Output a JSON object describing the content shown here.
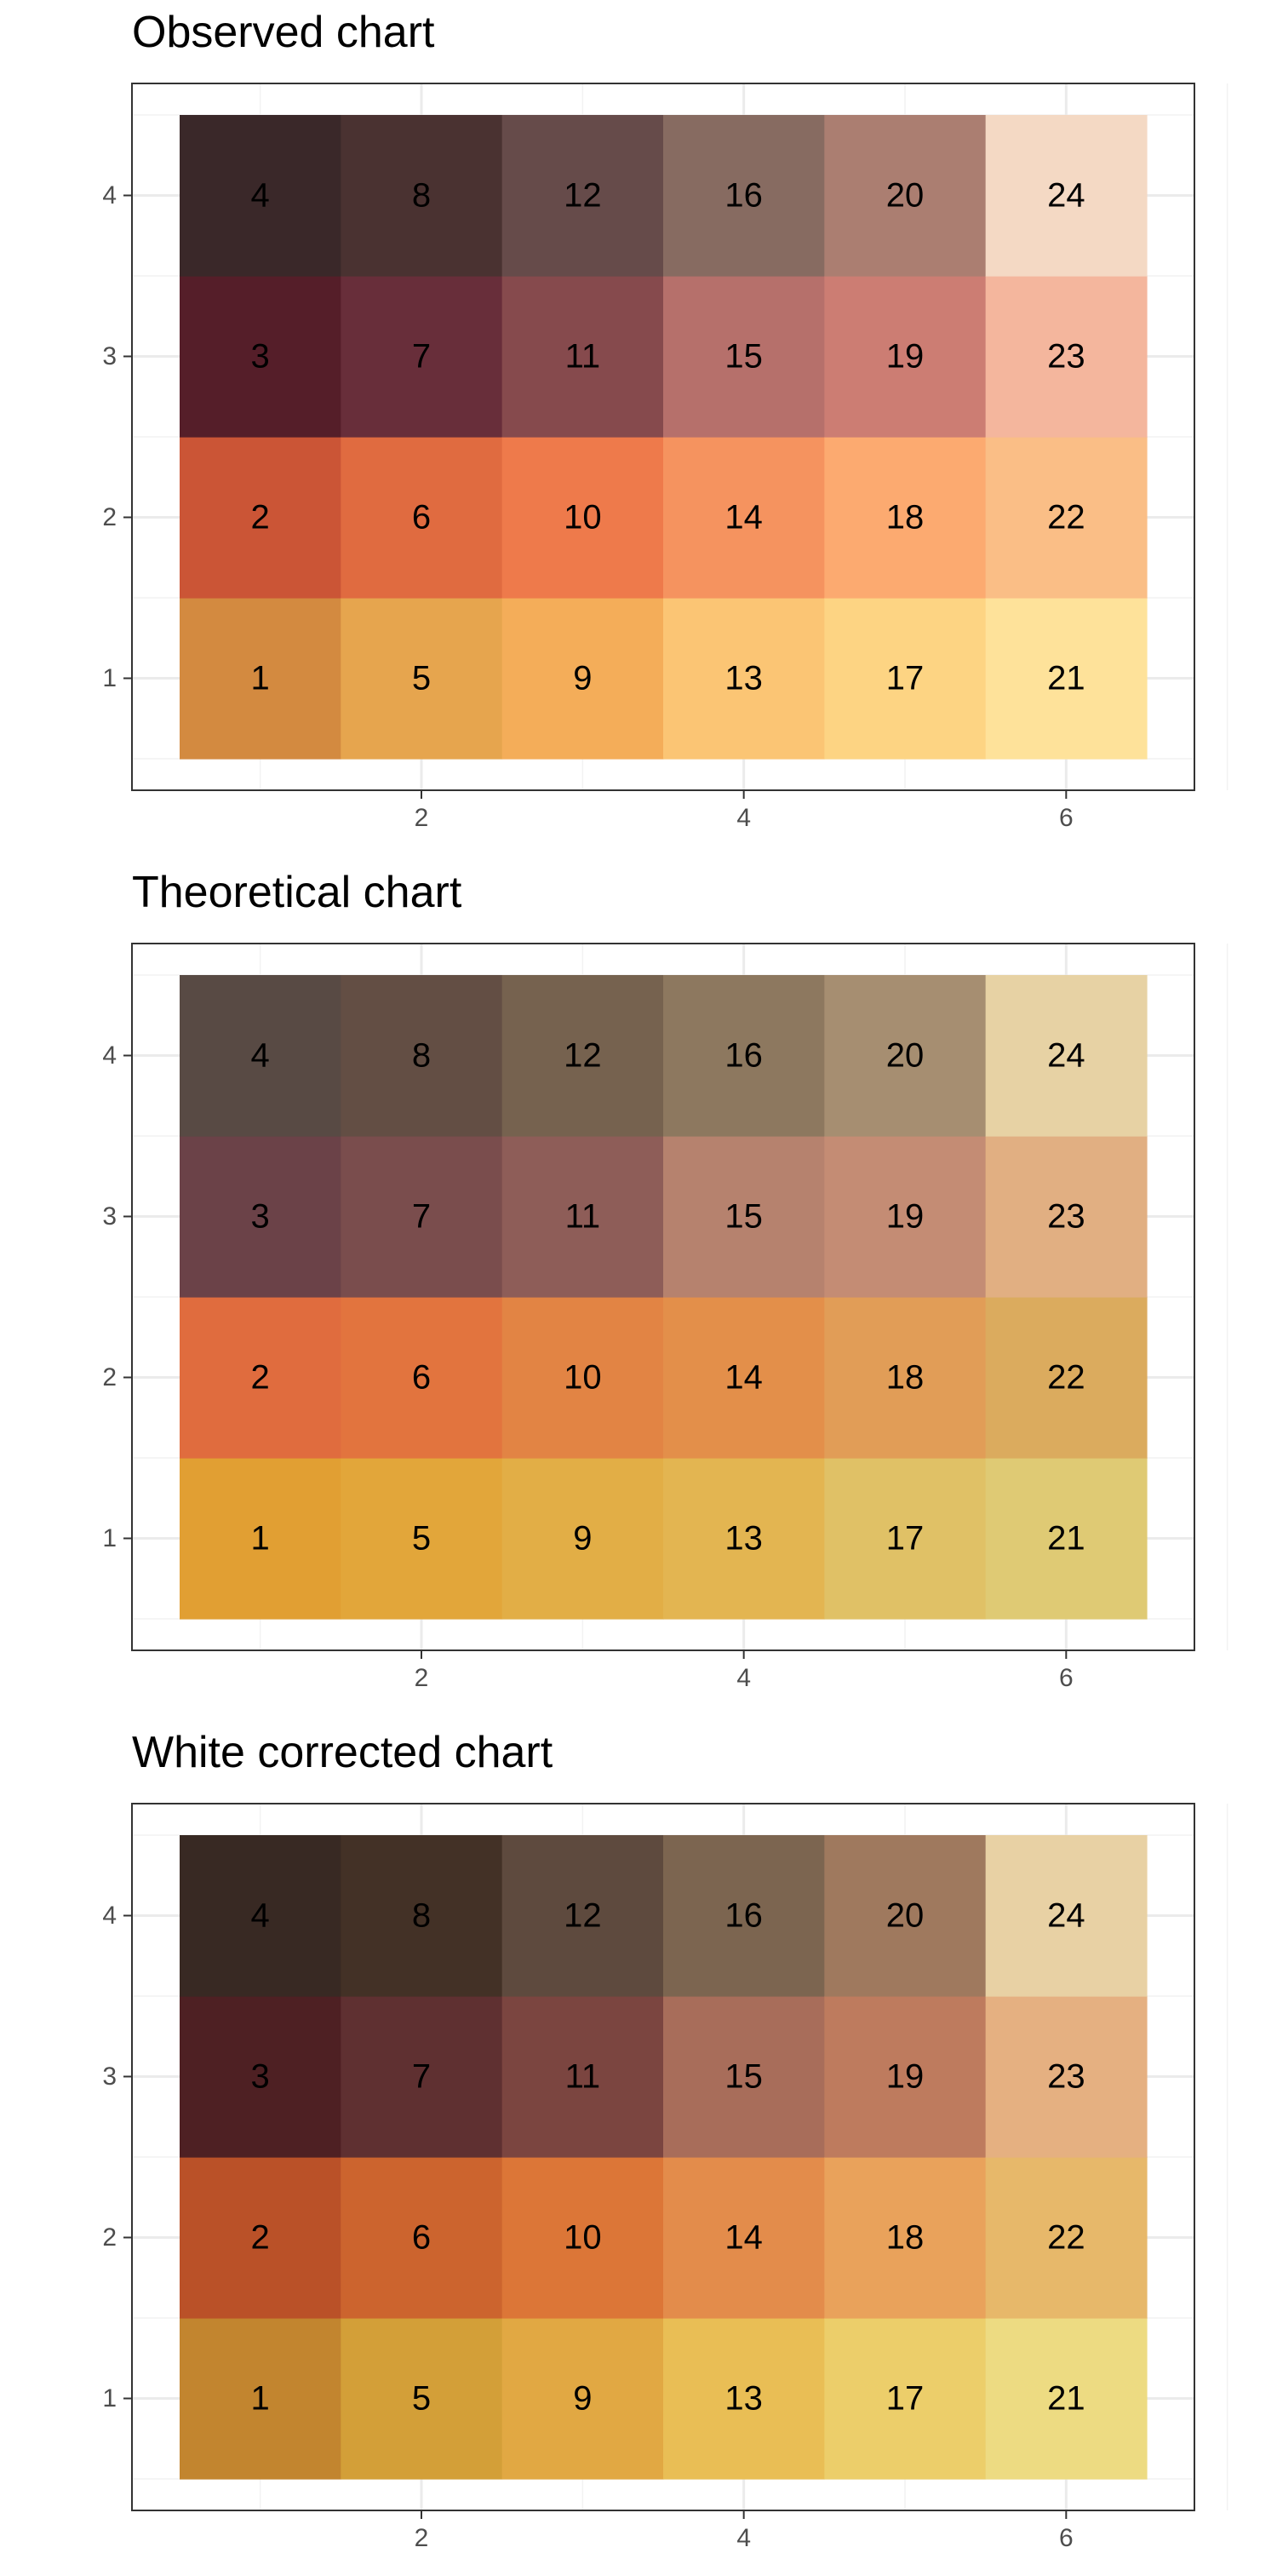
{
  "chart_data": [
    {
      "type": "heatmap",
      "title": "Observed chart",
      "xlabel": "",
      "ylabel": "",
      "xlim": [
        0.5,
        6.5
      ],
      "ylim": [
        0.5,
        4.5
      ],
      "x_ticks": [
        2,
        4,
        6
      ],
      "y_ticks": [
        1,
        2,
        3,
        4
      ],
      "grid": true,
      "cells": [
        {
          "x": 1,
          "y": 1,
          "label": "1",
          "color": "#D38A40"
        },
        {
          "x": 1,
          "y": 2,
          "label": "2",
          "color": "#CB5536"
        },
        {
          "x": 1,
          "y": 3,
          "label": "3",
          "color": "#551E29"
        },
        {
          "x": 1,
          "y": 4,
          "label": "4",
          "color": "#3A2829"
        },
        {
          "x": 2,
          "y": 1,
          "label": "5",
          "color": "#E6A54E"
        },
        {
          "x": 2,
          "y": 2,
          "label": "6",
          "color": "#E06B40"
        },
        {
          "x": 2,
          "y": 3,
          "label": "7",
          "color": "#682E3A"
        },
        {
          "x": 2,
          "y": 4,
          "label": "8",
          "color": "#4A3231"
        },
        {
          "x": 3,
          "y": 1,
          "label": "9",
          "color": "#F4AD59"
        },
        {
          "x": 3,
          "y": 2,
          "label": "10",
          "color": "#EE7A4B"
        },
        {
          "x": 3,
          "y": 3,
          "label": "11",
          "color": "#864A4D"
        },
        {
          "x": 3,
          "y": 4,
          "label": "12",
          "color": "#664B4A"
        },
        {
          "x": 4,
          "y": 1,
          "label": "13",
          "color": "#FBC574"
        },
        {
          "x": 4,
          "y": 2,
          "label": "14",
          "color": "#F5935F"
        },
        {
          "x": 4,
          "y": 3,
          "label": "15",
          "color": "#B6706B"
        },
        {
          "x": 4,
          "y": 4,
          "label": "16",
          "color": "#876B61"
        },
        {
          "x": 5,
          "y": 1,
          "label": "17",
          "color": "#FDD483"
        },
        {
          "x": 5,
          "y": 2,
          "label": "18",
          "color": "#FCAA70"
        },
        {
          "x": 5,
          "y": 3,
          "label": "19",
          "color": "#CC7D73"
        },
        {
          "x": 5,
          "y": 4,
          "label": "20",
          "color": "#AB7E71"
        },
        {
          "x": 6,
          "y": 1,
          "label": "21",
          "color": "#FEE29A"
        },
        {
          "x": 6,
          "y": 2,
          "label": "22",
          "color": "#FABE86"
        },
        {
          "x": 6,
          "y": 3,
          "label": "23",
          "color": "#F4B69D"
        },
        {
          "x": 6,
          "y": 4,
          "label": "24",
          "color": "#F4D9C4"
        }
      ]
    },
    {
      "type": "heatmap",
      "title": "Theoretical chart",
      "xlabel": "",
      "ylabel": "",
      "xlim": [
        0.5,
        6.5
      ],
      "ylim": [
        0.5,
        4.5
      ],
      "x_ticks": [
        2,
        4,
        6
      ],
      "y_ticks": [
        1,
        2,
        3,
        4
      ],
      "grid": true,
      "cells": [
        {
          "x": 1,
          "y": 1,
          "label": "1",
          "color": "#E19F33"
        },
        {
          "x": 1,
          "y": 2,
          "label": "2",
          "color": "#E06C3E"
        },
        {
          "x": 1,
          "y": 3,
          "label": "3",
          "color": "#6B4248"
        },
        {
          "x": 1,
          "y": 4,
          "label": "4",
          "color": "#584A44"
        },
        {
          "x": 2,
          "y": 1,
          "label": "5",
          "color": "#E2A63A"
        },
        {
          "x": 2,
          "y": 2,
          "label": "6",
          "color": "#E2743E"
        },
        {
          "x": 2,
          "y": 3,
          "label": "7",
          "color": "#7A4D4D"
        },
        {
          "x": 2,
          "y": 4,
          "label": "8",
          "color": "#634E44"
        },
        {
          "x": 3,
          "y": 1,
          "label": "9",
          "color": "#E2AE46"
        },
        {
          "x": 3,
          "y": 2,
          "label": "10",
          "color": "#E28444"
        },
        {
          "x": 3,
          "y": 3,
          "label": "11",
          "color": "#8E5D58"
        },
        {
          "x": 3,
          "y": 4,
          "label": "12",
          "color": "#76624F"
        },
        {
          "x": 4,
          "y": 1,
          "label": "13",
          "color": "#E3B551"
        },
        {
          "x": 4,
          "y": 2,
          "label": "14",
          "color": "#E38F4A"
        },
        {
          "x": 4,
          "y": 3,
          "label": "15",
          "color": "#B6826E"
        },
        {
          "x": 4,
          "y": 4,
          "label": "16",
          "color": "#8D785F"
        },
        {
          "x": 5,
          "y": 1,
          "label": "17",
          "color": "#E0C166"
        },
        {
          "x": 5,
          "y": 2,
          "label": "18",
          "color": "#E19D57"
        },
        {
          "x": 5,
          "y": 3,
          "label": "19",
          "color": "#C48C74"
        },
        {
          "x": 5,
          "y": 4,
          "label": "20",
          "color": "#A68E71"
        },
        {
          "x": 6,
          "y": 1,
          "label": "21",
          "color": "#DFCA74"
        },
        {
          "x": 6,
          "y": 2,
          "label": "22",
          "color": "#DBAB5E"
        },
        {
          "x": 6,
          "y": 3,
          "label": "23",
          "color": "#E1AF82"
        },
        {
          "x": 6,
          "y": 4,
          "label": "24",
          "color": "#E7D2A4"
        }
      ]
    },
    {
      "type": "heatmap",
      "title": "White corrected chart",
      "xlabel": "",
      "ylabel": "",
      "xlim": [
        0.5,
        6.5
      ],
      "ylim": [
        0.5,
        4.5
      ],
      "x_ticks": [
        2,
        4,
        6
      ],
      "y_ticks": [
        1,
        2,
        3,
        4
      ],
      "grid": true,
      "cells": [
        {
          "x": 1,
          "y": 1,
          "label": "1",
          "color": "#C2852F"
        },
        {
          "x": 1,
          "y": 2,
          "label": "2",
          "color": "#BA5128"
        },
        {
          "x": 1,
          "y": 3,
          "label": "3",
          "color": "#4E2023"
        },
        {
          "x": 1,
          "y": 4,
          "label": "4",
          "color": "#382923"
        },
        {
          "x": 2,
          "y": 1,
          "label": "5",
          "color": "#D39F38"
        },
        {
          "x": 2,
          "y": 2,
          "label": "6",
          "color": "#CC642E"
        },
        {
          "x": 2,
          "y": 3,
          "label": "7",
          "color": "#5F3031"
        },
        {
          "x": 2,
          "y": 4,
          "label": "8",
          "color": "#433126"
        },
        {
          "x": 3,
          "y": 1,
          "label": "9",
          "color": "#E1A843"
        },
        {
          "x": 3,
          "y": 2,
          "label": "10",
          "color": "#DC7637"
        },
        {
          "x": 3,
          "y": 3,
          "label": "11",
          "color": "#7B4540"
        },
        {
          "x": 3,
          "y": 4,
          "label": "12",
          "color": "#5E4A3E"
        },
        {
          "x": 4,
          "y": 1,
          "label": "13",
          "color": "#E9BE55"
        },
        {
          "x": 4,
          "y": 2,
          "label": "14",
          "color": "#E38C4B"
        },
        {
          "x": 4,
          "y": 3,
          "label": "15",
          "color": "#A86D5A"
        },
        {
          "x": 4,
          "y": 4,
          "label": "16",
          "color": "#7C6550"
        },
        {
          "x": 5,
          "y": 1,
          "label": "17",
          "color": "#ECCE6A"
        },
        {
          "x": 5,
          "y": 2,
          "label": "18",
          "color": "#E9A25B"
        },
        {
          "x": 5,
          "y": 3,
          "label": "19",
          "color": "#BE7B5E"
        },
        {
          "x": 5,
          "y": 4,
          "label": "20",
          "color": "#9F795E"
        },
        {
          "x": 6,
          "y": 1,
          "label": "21",
          "color": "#EDDB82"
        },
        {
          "x": 6,
          "y": 2,
          "label": "22",
          "color": "#E7B86A"
        },
        {
          "x": 6,
          "y": 3,
          "label": "23",
          "color": "#E5B081"
        },
        {
          "x": 6,
          "y": 4,
          "label": "24",
          "color": "#E8D1A4"
        }
      ]
    }
  ]
}
